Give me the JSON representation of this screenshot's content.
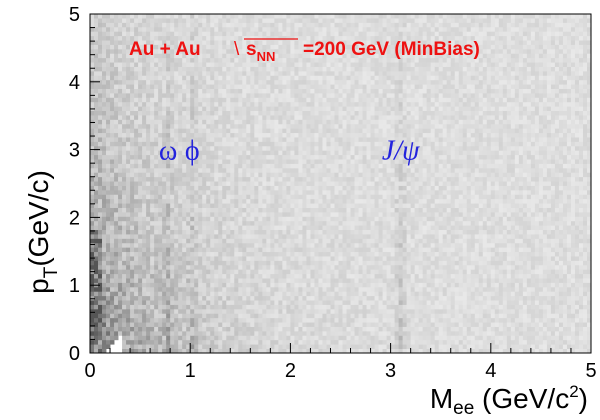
{
  "chart_data": {
    "type": "heatmap",
    "title": "",
    "xlabel": {
      "main": "M",
      "sub": "ee",
      "unit_open": " (GeV/c",
      "unit_sup": "2",
      "unit_close": ")"
    },
    "ylabel": {
      "main": "p",
      "sub": "T",
      "unit": "(GeV/c)"
    },
    "xlim": [
      0,
      5
    ],
    "ylim": [
      0,
      5
    ],
    "x_ticks": [
      "0",
      "1",
      "2",
      "3",
      "4",
      "5"
    ],
    "y_ticks": [
      "0",
      "1",
      "2",
      "3",
      "4",
      "5"
    ],
    "annotation": {
      "system": "Au + Au",
      "sqrt": "\\",
      "s": "s",
      "s_sub": "NN",
      "energy": "=200 GeV (MinBias)"
    },
    "peaks": [
      {
        "label": "ω",
        "mass": 0.78
      },
      {
        "label": "ϕ",
        "mass": 1.02
      },
      {
        "label": "J/ψ",
        "mass": 3.1
      }
    ],
    "colors": {
      "annotation": "#ee1111",
      "peak_labels": "#2323dd",
      "density_low": "#f2f2f2",
      "density_high": "#505050"
    }
  }
}
